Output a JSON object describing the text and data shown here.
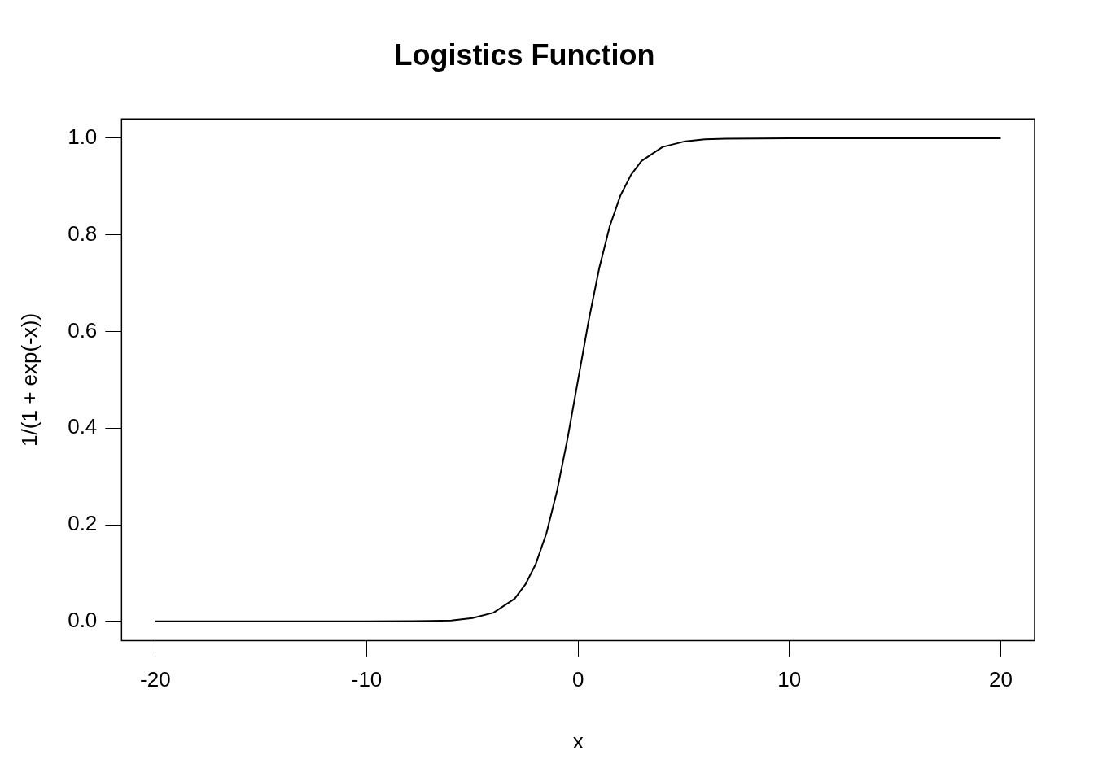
{
  "chart_data": {
    "type": "line",
    "title": "Logistics Function",
    "xlabel": "x",
    "ylabel": "1/(1 + exp(-x))",
    "xlim": [
      -21.6,
      21.6
    ],
    "ylim": [
      -0.04,
      1.04
    ],
    "xticks": [
      -20,
      -10,
      0,
      10,
      20
    ],
    "yticks": [
      {
        "value": 0,
        "label": "0.0"
      },
      0.2,
      0.4,
      0.6,
      0.8,
      {
        "value": 1,
        "label": "1.0"
      }
    ],
    "grid": false,
    "legend": false,
    "marker": "none",
    "line_style": "solid",
    "series": [
      {
        "color": "#000000",
        "x": [
          -20,
          -10,
          -7,
          -6,
          -5,
          -4,
          -3,
          -2.5,
          -2,
          -1.5,
          -1,
          -0.5,
          0,
          0.5,
          1,
          1.5,
          2,
          2.5,
          3,
          4,
          5,
          6,
          7,
          10,
          20
        ],
        "values": [
          0,
          0,
          0.001,
          0.002,
          0.007,
          0.018,
          0.047,
          0.076,
          0.119,
          0.182,
          0.269,
          0.378,
          0.5,
          0.622,
          0.731,
          0.818,
          0.881,
          0.924,
          0.953,
          0.982,
          0.993,
          0.998,
          0.999,
          1,
          1
        ]
      }
    ]
  }
}
